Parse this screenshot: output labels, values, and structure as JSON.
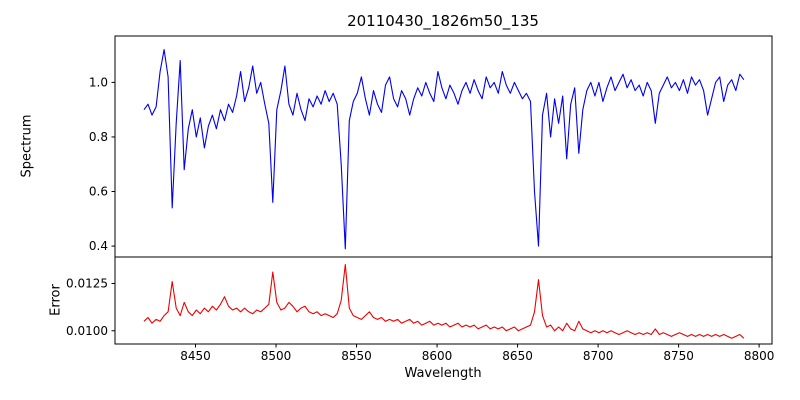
{
  "chart_data": {
    "type": "line",
    "title": "20110430_1826m50_135",
    "xlabel": "Wavelength",
    "x_start": 8418,
    "x_step": 2.5,
    "xlim": [
      8400,
      8808
    ],
    "xticks": [
      8450,
      8500,
      8550,
      8600,
      8650,
      8700,
      8750,
      8800
    ],
    "grid": false,
    "legend": "none",
    "subplots": [
      {
        "name": "spectrum",
        "ylabel": "Spectrum",
        "color": "#0000ee",
        "ylim": [
          0.36,
          1.17
        ],
        "yticks": [
          0.4,
          0.6,
          0.8,
          1.0
        ],
        "ytick_labels": [
          "0.4",
          "0.6",
          "0.8",
          "1.0"
        ],
        "values": [
          0.9,
          0.92,
          0.88,
          0.91,
          1.04,
          1.12,
          1.02,
          0.54,
          0.85,
          1.08,
          0.68,
          0.83,
          0.9,
          0.8,
          0.87,
          0.76,
          0.84,
          0.88,
          0.83,
          0.9,
          0.86,
          0.92,
          0.89,
          0.95,
          1.04,
          0.93,
          0.98,
          1.06,
          0.96,
          1.0,
          0.92,
          0.85,
          0.56,
          0.9,
          0.97,
          1.06,
          0.92,
          0.88,
          0.96,
          0.9,
          0.86,
          0.94,
          0.91,
          0.95,
          0.92,
          0.97,
          0.93,
          0.96,
          0.92,
          0.7,
          0.39,
          0.86,
          0.93,
          0.96,
          1.02,
          0.94,
          0.88,
          0.97,
          0.92,
          0.89,
          0.99,
          1.02,
          0.94,
          0.91,
          0.97,
          0.94,
          0.88,
          0.94,
          0.98,
          0.95,
          1.0,
          0.96,
          0.93,
          1.04,
          0.98,
          0.94,
          0.99,
          0.96,
          0.92,
          0.97,
          1.0,
          0.96,
          1.01,
          0.97,
          0.94,
          1.02,
          0.98,
          1.0,
          0.96,
          1.04,
          0.99,
          0.96,
          1.0,
          0.97,
          0.94,
          0.96,
          0.93,
          0.6,
          0.4,
          0.88,
          0.96,
          0.8,
          0.94,
          0.85,
          0.95,
          0.72,
          0.92,
          0.98,
          0.74,
          0.9,
          0.97,
          1.0,
          0.95,
          1.0,
          0.93,
          0.98,
          1.02,
          0.97,
          1.0,
          1.03,
          0.98,
          1.01,
          0.97,
          0.99,
          0.95,
          1.0,
          0.97,
          0.85,
          0.96,
          0.99,
          1.02,
          0.98,
          1.0,
          0.97,
          1.01,
          0.96,
          1.02,
          0.99,
          1.01,
          0.97,
          0.88,
          0.94,
          1.0,
          1.02,
          0.93,
          0.99,
          1.01,
          0.97,
          1.03,
          1.01
        ]
      },
      {
        "name": "error",
        "ylabel": "Error",
        "color": "#ee0000",
        "ylim": [
          0.0093,
          0.0139
        ],
        "yticks": [
          0.01,
          0.0125
        ],
        "ytick_labels": [
          "0.0100",
          "0.0125"
        ],
        "values": [
          0.0105,
          0.0107,
          0.0104,
          0.0106,
          0.0105,
          0.0108,
          0.011,
          0.0126,
          0.0112,
          0.0108,
          0.0115,
          0.011,
          0.0108,
          0.0111,
          0.0109,
          0.0112,
          0.011,
          0.0113,
          0.0111,
          0.0114,
          0.0118,
          0.0113,
          0.0111,
          0.0112,
          0.011,
          0.0112,
          0.011,
          0.0109,
          0.0111,
          0.011,
          0.0112,
          0.0114,
          0.0131,
          0.0115,
          0.0111,
          0.0112,
          0.0115,
          0.0113,
          0.011,
          0.0112,
          0.0113,
          0.011,
          0.0109,
          0.011,
          0.0108,
          0.0109,
          0.0108,
          0.0107,
          0.0109,
          0.0116,
          0.0135,
          0.0112,
          0.0108,
          0.0107,
          0.0106,
          0.0108,
          0.011,
          0.0107,
          0.0106,
          0.0107,
          0.0105,
          0.0106,
          0.0105,
          0.0106,
          0.0104,
          0.0105,
          0.0106,
          0.0104,
          0.0105,
          0.0103,
          0.0104,
          0.0105,
          0.0103,
          0.0104,
          0.0103,
          0.0104,
          0.0102,
          0.0103,
          0.0104,
          0.0102,
          0.0103,
          0.0102,
          0.0103,
          0.0101,
          0.0102,
          0.0103,
          0.0101,
          0.0102,
          0.0101,
          0.0102,
          0.01,
          0.0101,
          0.0102,
          0.01,
          0.0101,
          0.0102,
          0.0103,
          0.011,
          0.0127,
          0.0108,
          0.0102,
          0.0103,
          0.01,
          0.0102,
          0.01,
          0.0104,
          0.0101,
          0.01,
          0.0105,
          0.0101,
          0.01,
          0.0099,
          0.01,
          0.0099,
          0.01,
          0.0099,
          0.01,
          0.0099,
          0.0098,
          0.0099,
          0.01,
          0.0099,
          0.0098,
          0.0099,
          0.0098,
          0.0099,
          0.0098,
          0.0101,
          0.0098,
          0.0099,
          0.0098,
          0.0097,
          0.0098,
          0.0099,
          0.0098,
          0.0097,
          0.0098,
          0.0097,
          0.0098,
          0.0097,
          0.0098,
          0.0097,
          0.0098,
          0.0097,
          0.0098,
          0.0097,
          0.0096,
          0.0097,
          0.0098,
          0.0096
        ]
      }
    ]
  }
}
